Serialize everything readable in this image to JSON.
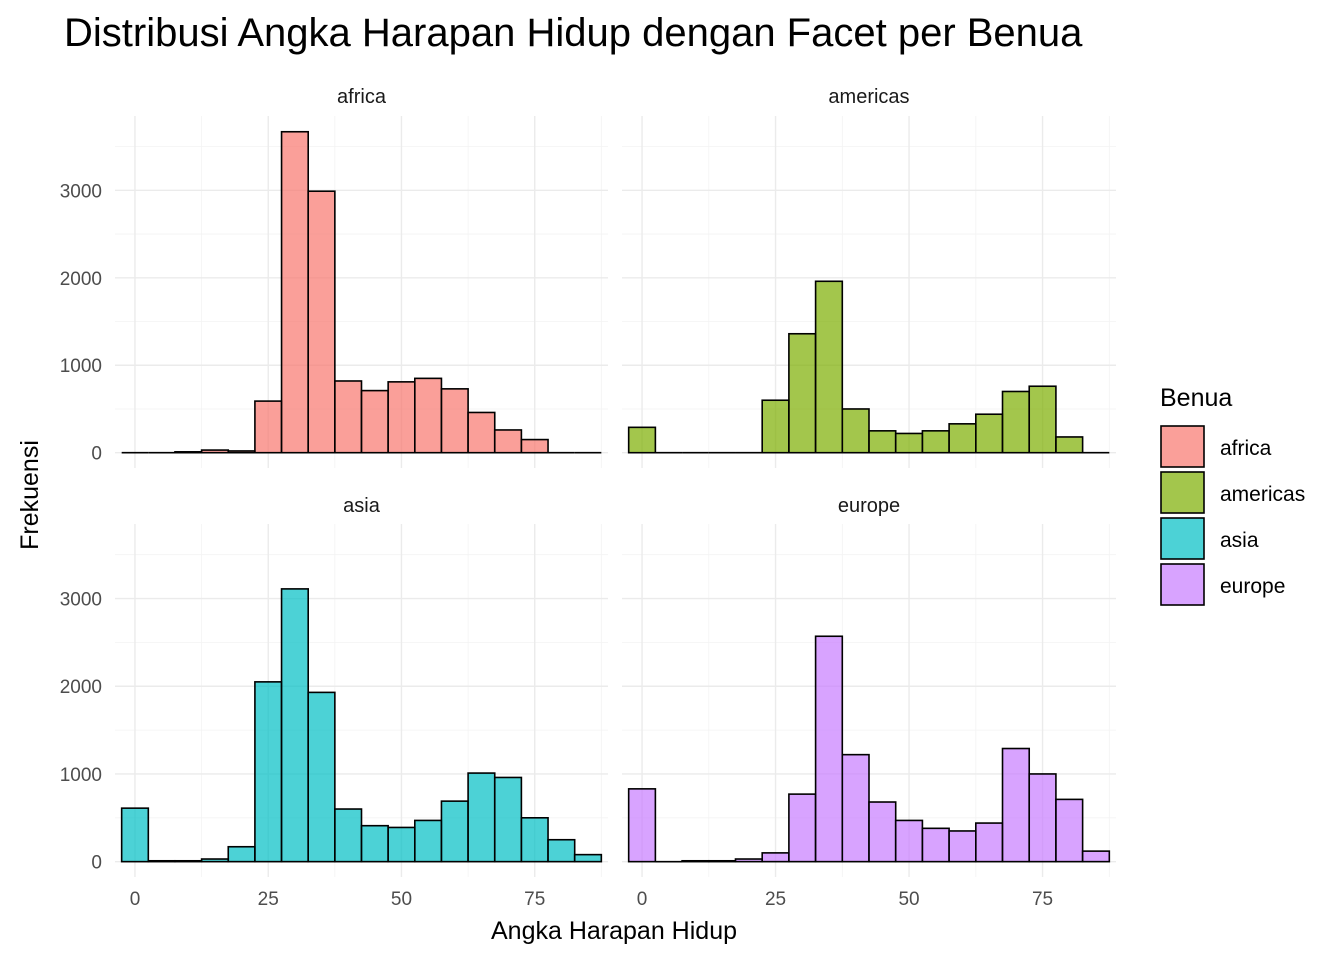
{
  "chart_data": {
    "type": "bar",
    "title": "Distribusi Angka Harapan Hidup dengan Facet per Benua",
    "xlabel": "Angka Harapan Hidup",
    "ylabel": "Frekuensi",
    "xlim": [
      -3.75,
      88.75
    ],
    "ylim": [
      -175,
      3850
    ],
    "x_ticks": [
      0,
      25,
      50,
      75
    ],
    "y_ticks": [
      0,
      1000,
      2000,
      3000
    ],
    "bin_width": 5,
    "bin_centers": [
      0,
      5,
      10,
      15,
      20,
      25,
      30,
      35,
      40,
      45,
      50,
      55,
      60,
      65,
      70,
      75,
      80,
      85
    ],
    "grid": true,
    "legend": {
      "title": "Benua",
      "position": "right",
      "entries": [
        "africa",
        "americas",
        "asia",
        "europe"
      ]
    },
    "series": [
      {
        "name": "africa",
        "color": "#F8766D",
        "values": [
          0,
          0,
          10,
          30,
          20,
          590,
          3670,
          2990,
          820,
          710,
          810,
          850,
          730,
          460,
          260,
          150,
          0,
          0
        ]
      },
      {
        "name": "americas",
        "color": "#7CAE00",
        "values": [
          290,
          0,
          0,
          0,
          0,
          600,
          1360,
          1960,
          500,
          250,
          220,
          250,
          330,
          440,
          700,
          760,
          180,
          0
        ]
      },
      {
        "name": "asia",
        "color": "#00BFC4",
        "values": [
          610,
          10,
          10,
          30,
          170,
          2050,
          3110,
          1930,
          600,
          410,
          390,
          470,
          690,
          1010,
          960,
          500,
          250,
          80
        ]
      },
      {
        "name": "europe",
        "color": "#C77CFF",
        "values": [
          830,
          0,
          10,
          10,
          30,
          100,
          770,
          2570,
          1220,
          680,
          470,
          380,
          350,
          440,
          1290,
          1000,
          710,
          120
        ]
      }
    ]
  }
}
